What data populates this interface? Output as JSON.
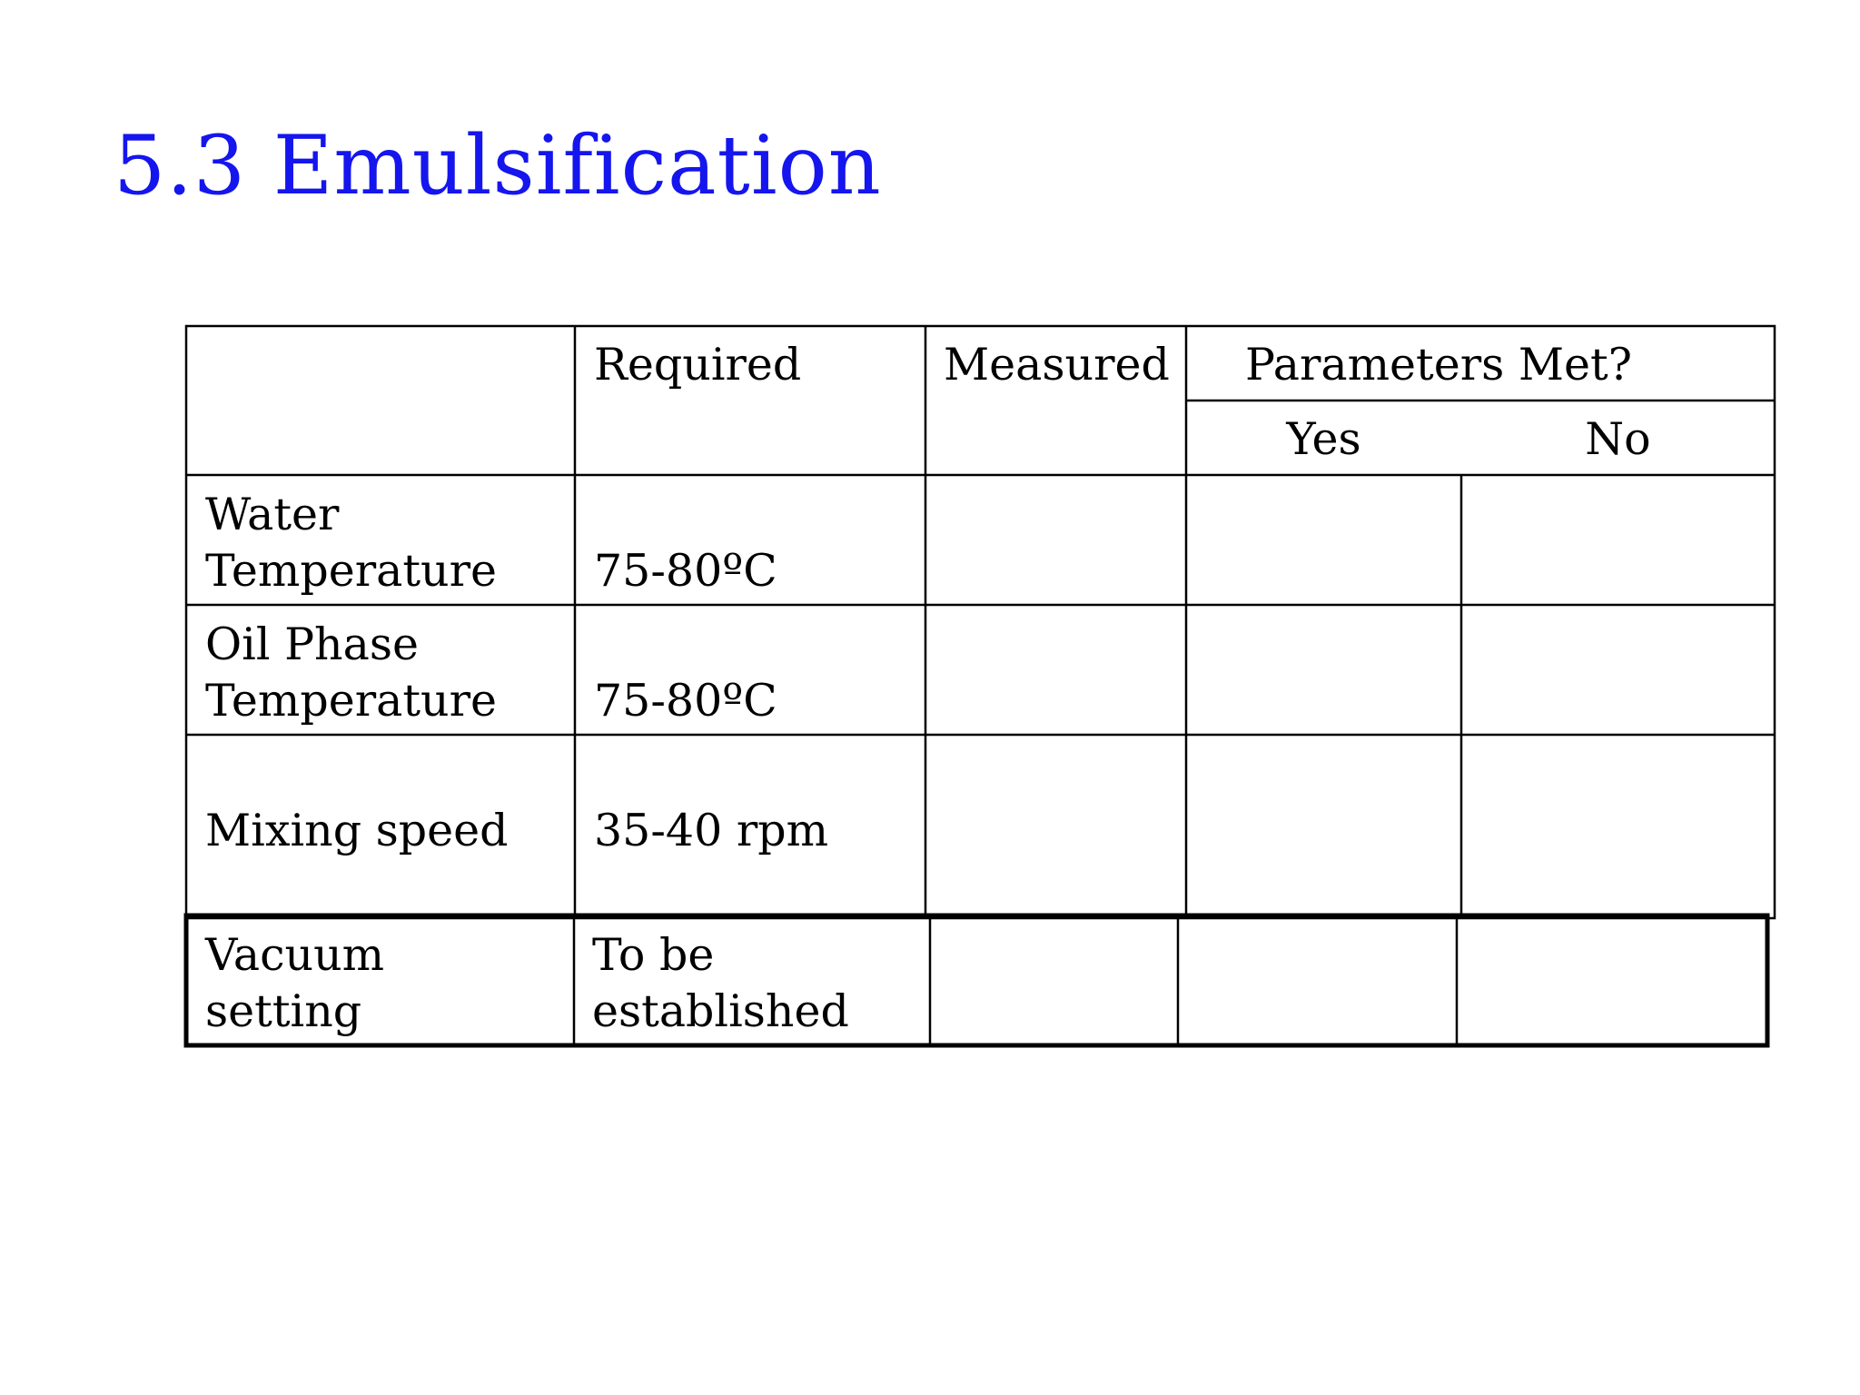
{
  "slide": {
    "title": "5.3 Emulsification",
    "title_color": "#1515EE"
  },
  "table": {
    "headers": {
      "required": "Required",
      "measured": "Measured",
      "parameters_met": "Parameters Met?",
      "yes": "Yes",
      "no": "No"
    },
    "rows": [
      {
        "label_line1": "Water",
        "label_line2": "Temperature",
        "required": "75-80ºC"
      },
      {
        "label_line1": "Oil Phase",
        "label_line2": "Temperature",
        "required": "75-80ºC"
      },
      {
        "label": "Mixing speed",
        "required": "35-40 rpm"
      },
      {
        "label_line1": "Vacuum",
        "label_line2": "setting",
        "required_line1": "To be",
        "required_line2": "established"
      }
    ]
  }
}
